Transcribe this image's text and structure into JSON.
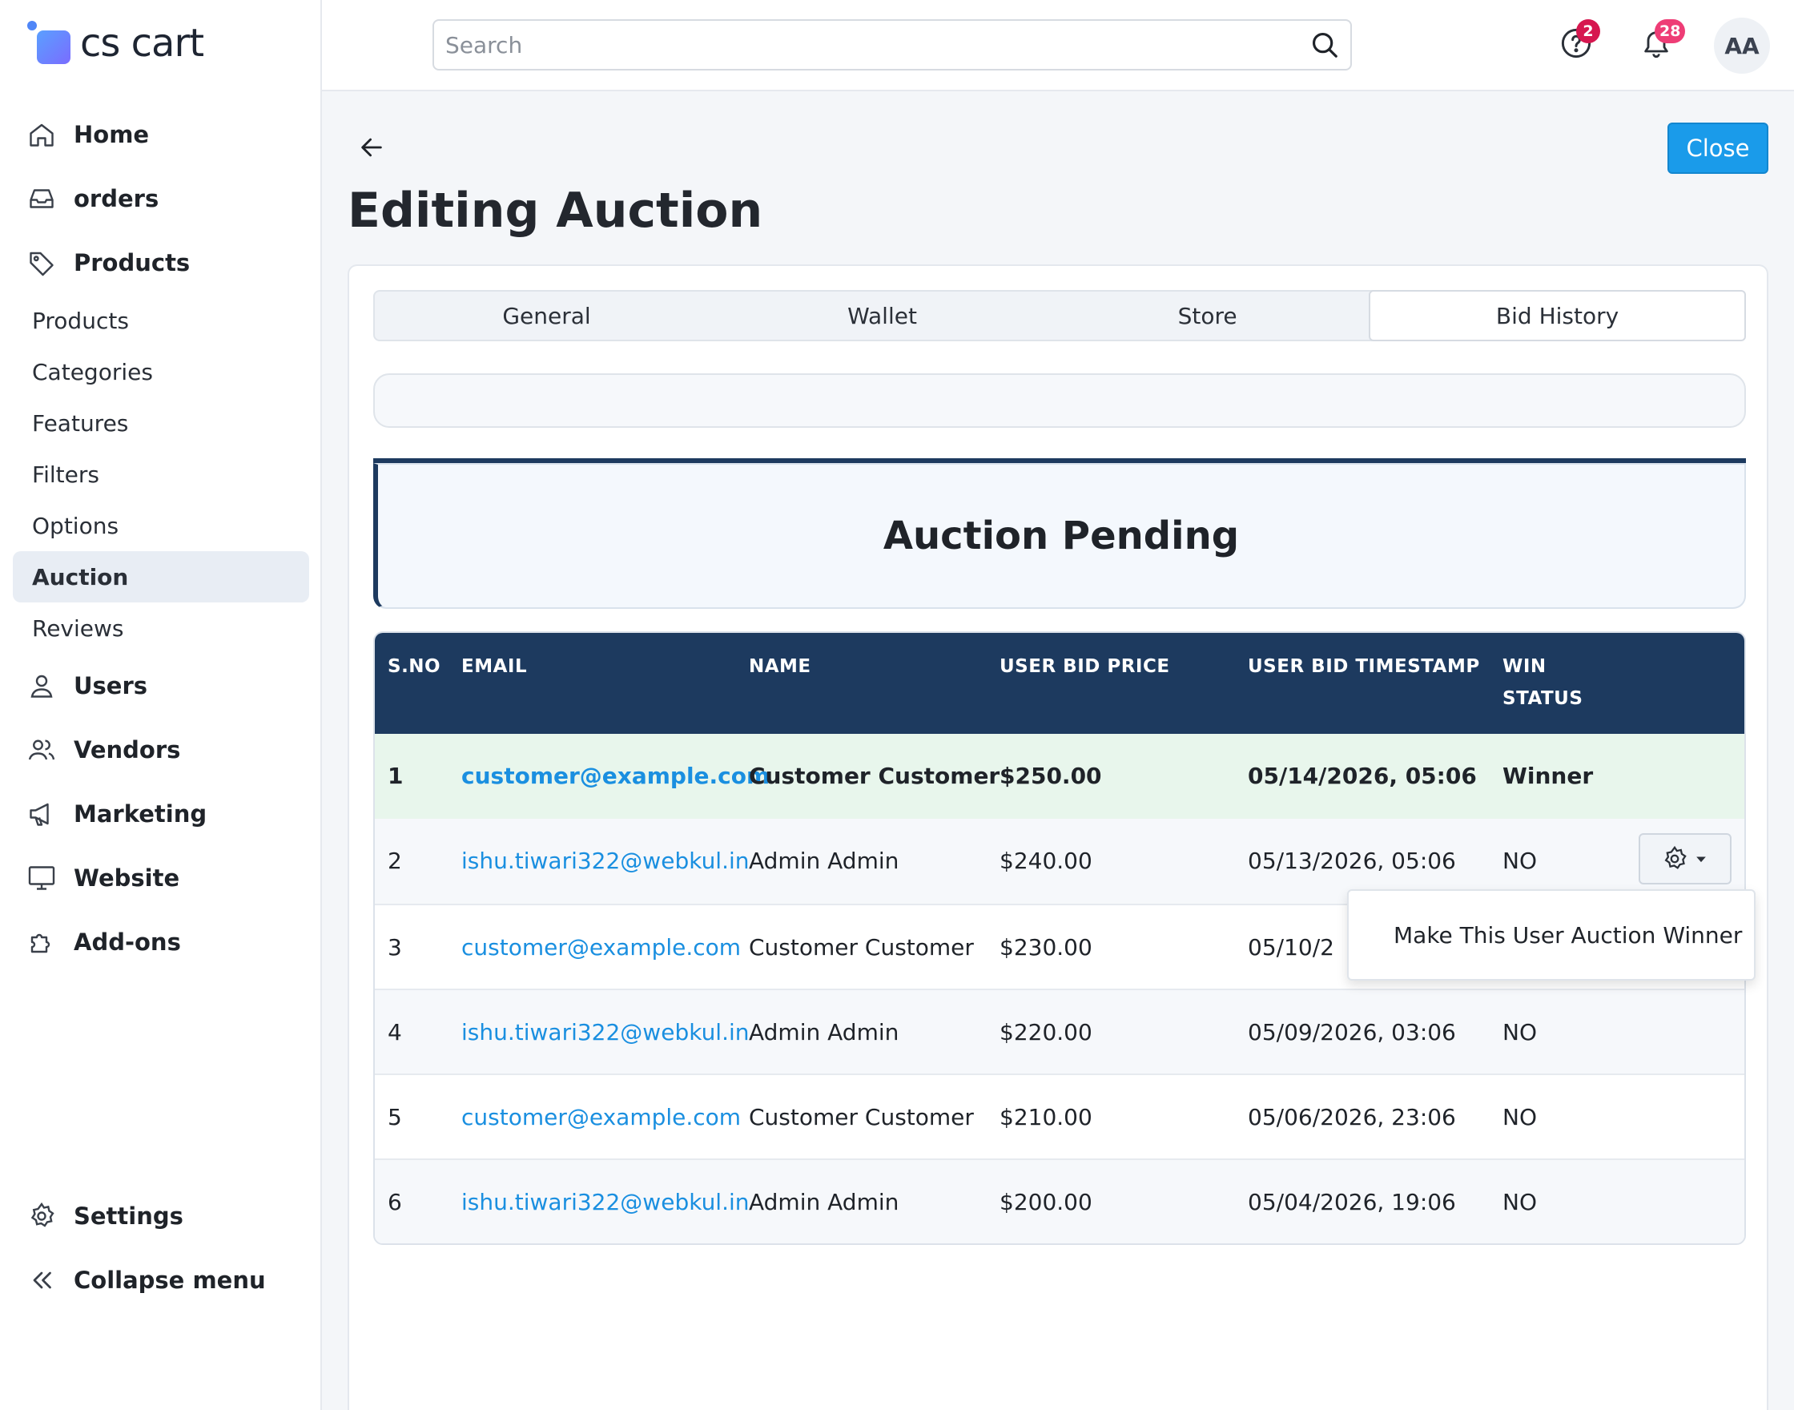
{
  "app": {
    "logo_text": "cs cart"
  },
  "sidebar": {
    "items": [
      {
        "label": "Home",
        "icon": "home-icon"
      },
      {
        "label": "orders",
        "icon": "inbox-icon"
      },
      {
        "label": "Products",
        "icon": "tag-icon"
      }
    ],
    "products_sub": [
      "Products",
      "Categories",
      "Features",
      "Filters",
      "Options",
      "Auction",
      "Reviews"
    ],
    "active_sub": "Auction",
    "items_after": [
      {
        "label": "Users",
        "icon": "user-icon"
      },
      {
        "label": "Vendors",
        "icon": "users-icon"
      },
      {
        "label": "Marketing",
        "icon": "megaphone-icon"
      },
      {
        "label": "Website",
        "icon": "monitor-icon"
      },
      {
        "label": "Add-ons",
        "icon": "puzzle-icon"
      }
    ],
    "settings_label": "Settings",
    "collapse_label": "Collapse menu"
  },
  "topbar": {
    "search_placeholder": "Search",
    "help_badge": "2",
    "notifications_badge": "28",
    "avatar_initials": "AA",
    "help_badge_color": "#d6174f",
    "notifications_badge_color": "#ee3d76"
  },
  "page": {
    "title": "Editing Auction",
    "close_label": "Close",
    "tabs": [
      "General",
      "Wallet",
      "Store",
      "Bid History"
    ],
    "active_tab": "Bid History",
    "status_heading": "Auction Pending"
  },
  "table": {
    "headers": {
      "sno": "S.NO",
      "email": "EMAIL",
      "name": "NAME",
      "price": "USER BID PRICE",
      "timestamp": "USER BID TIMESTAMP",
      "win_status_1": "WIN",
      "win_status_2": "STATUS"
    },
    "rows": [
      {
        "sno": "1",
        "email": "customer@example.com",
        "name": "Customer Customer",
        "price": "$250.00",
        "timestamp": "05/14/2026, 05:06",
        "status": "Winner"
      },
      {
        "sno": "2",
        "email": "ishu.tiwari322@webkul.in",
        "name": "Admin Admin",
        "price": "$240.00",
        "timestamp": "05/13/2026, 05:06",
        "status": "NO"
      },
      {
        "sno": "3",
        "email": "customer@example.com",
        "name": "Customer Customer",
        "price": "$230.00",
        "timestamp": "05/10/2",
        "status": ""
      },
      {
        "sno": "4",
        "email": "ishu.tiwari322@webkul.in",
        "name": "Admin Admin",
        "price": "$220.00",
        "timestamp": "05/09/2026, 03:06",
        "status": "NO"
      },
      {
        "sno": "5",
        "email": "customer@example.com",
        "name": "Customer Customer",
        "price": "$210.00",
        "timestamp": "05/06/2026, 23:06",
        "status": "NO"
      },
      {
        "sno": "6",
        "email": "ishu.tiwari322@webkul.in",
        "name": "Admin Admin",
        "price": "$200.00",
        "timestamp": "05/04/2026, 19:06",
        "status": "NO"
      }
    ],
    "dropdown_item": "Make This User Auction Winner"
  }
}
